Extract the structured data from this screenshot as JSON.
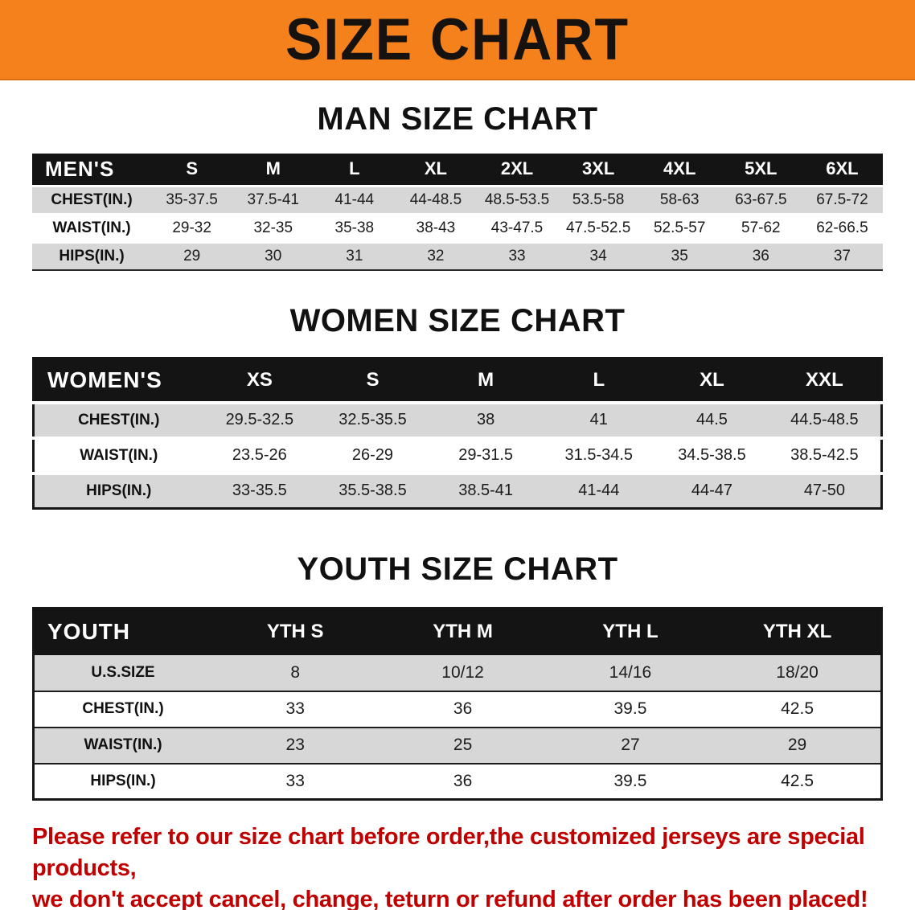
{
  "banner": {
    "title": "SIZE CHART",
    "bg_color": "#F4811C"
  },
  "sections": [
    {
      "heading": "MAN SIZE CHART",
      "corner_label": "MEN'S",
      "columns": [
        "S",
        "M",
        "L",
        "XL",
        "2XL",
        "3XL",
        "4XL",
        "5XL",
        "6XL"
      ],
      "rows": [
        {
          "label": "CHEST(IN.)",
          "values": [
            "35-37.5",
            "37.5-41",
            "41-44",
            "44-48.5",
            "48.5-53.5",
            "53.5-58",
            "58-63",
            "63-67.5",
            "67.5-72"
          ]
        },
        {
          "label": "WAIST(IN.)",
          "values": [
            "29-32",
            "32-35",
            "35-38",
            "38-43",
            "43-47.5",
            "47.5-52.5",
            "52.5-57",
            "57-62",
            "62-66.5"
          ]
        },
        {
          "label": "HIPS(IN.)",
          "values": [
            "29",
            "30",
            "31",
            "32",
            "33",
            "34",
            "35",
            "36",
            "37"
          ]
        }
      ]
    },
    {
      "heading": "WOMEN SIZE CHART",
      "corner_label": "WOMEN'S",
      "columns": [
        "XS",
        "S",
        "M",
        "L",
        "XL",
        "XXL"
      ],
      "rows": [
        {
          "label": "CHEST(IN.)",
          "values": [
            "29.5-32.5",
            "32.5-35.5",
            "38",
            "41",
            "44.5",
            "44.5-48.5"
          ]
        },
        {
          "label": "WAIST(IN.)",
          "values": [
            "23.5-26",
            "26-29",
            "29-31.5",
            "31.5-34.5",
            "34.5-38.5",
            "38.5-42.5"
          ]
        },
        {
          "label": "HIPS(IN.)",
          "values": [
            "33-35.5",
            "35.5-38.5",
            "38.5-41",
            "41-44",
            "44-47",
            "47-50"
          ]
        }
      ]
    },
    {
      "heading": "YOUTH SIZE CHART",
      "corner_label": "YOUTH",
      "columns": [
        "YTH S",
        "YTH M",
        "YTH L",
        "YTH XL"
      ],
      "rows": [
        {
          "label": "U.S.SIZE",
          "values": [
            "8",
            "10/12",
            "14/16",
            "18/20"
          ]
        },
        {
          "label": "CHEST(IN.)",
          "values": [
            "33",
            "36",
            "39.5",
            "42.5"
          ]
        },
        {
          "label": "WAIST(IN.)",
          "values": [
            "23",
            "25",
            "27",
            "29"
          ]
        },
        {
          "label": "HIPS(IN.)",
          "values": [
            "33",
            "36",
            "39.5",
            "42.5"
          ]
        }
      ]
    }
  ],
  "footer": {
    "line1": "Please refer to our size chart before order,the customized jerseys are special products,",
    "line2": "we don't accept cancel, change, teturn or refund after order has been placed!",
    "color": "#C00000"
  }
}
